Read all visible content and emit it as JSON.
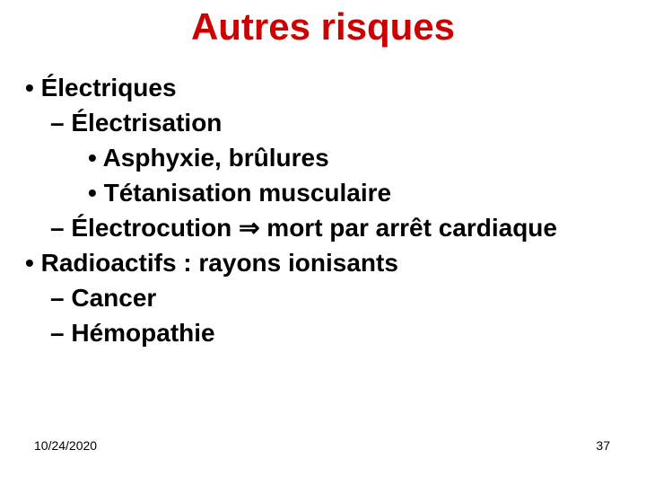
{
  "title": {
    "text": "Autres risques",
    "color": "#cc0000",
    "fontsize": 42
  },
  "body": {
    "color": "#000000",
    "fontsize": 28,
    "items": [
      {
        "level": 1,
        "bullet": "•",
        "text": "Électriques"
      },
      {
        "level": 2,
        "bullet": "–",
        "text": "Électrisation"
      },
      {
        "level": 3,
        "bullet": "•",
        "text": "Asphyxie, brûlures"
      },
      {
        "level": 3,
        "bullet": "•",
        "text": "Tétanisation musculaire"
      },
      {
        "level": 2,
        "bullet": "–",
        "text_before": "Électrocution ",
        "arrow": "⇒",
        "text_after": " mort par arrêt cardiaque"
      },
      {
        "level": 1,
        "bullet": "•",
        "text": "Radioactifs : rayons ionisants"
      },
      {
        "level": 2,
        "bullet": "–",
        "text": "Cancer"
      },
      {
        "level": 2,
        "bullet": "–",
        "text": "Hémopathie"
      }
    ]
  },
  "footer": {
    "date": "10/24/2020",
    "page": "37",
    "color": "#000000",
    "fontsize": 14
  }
}
